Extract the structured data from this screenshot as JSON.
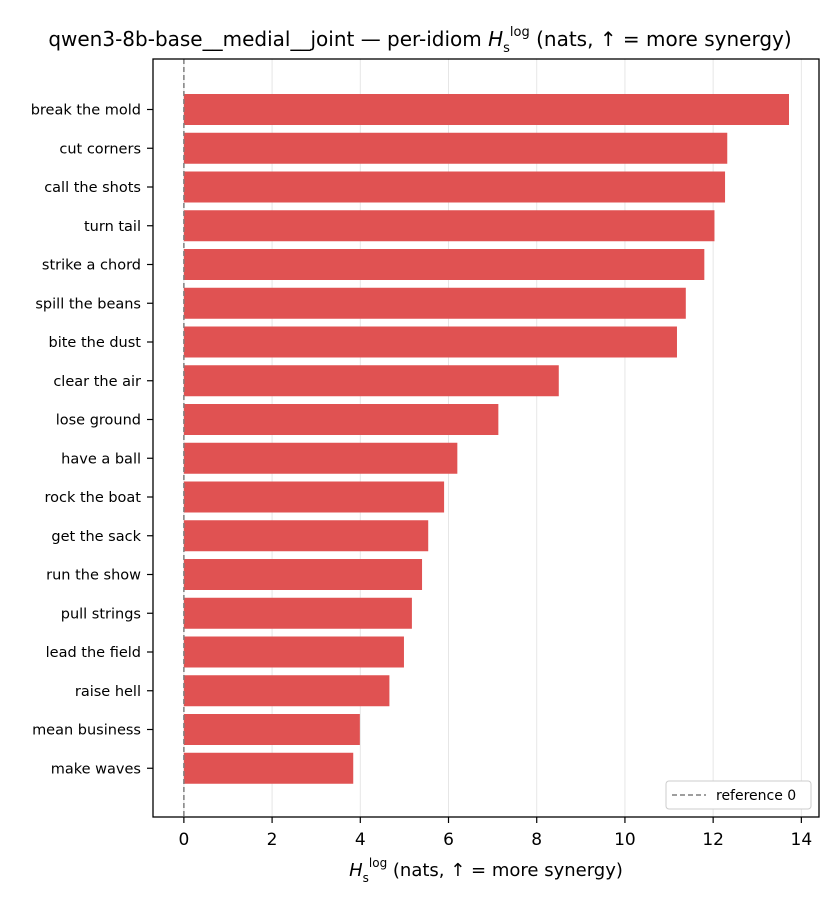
{
  "chart_data": {
    "type": "bar",
    "orientation": "horizontal",
    "title_prefix": "qwen3-8b-base__medial__joint — per-idiom ",
    "title_suffix": " (nats, ↑ = more synergy)",
    "xlabel_suffix": " (nats, ↑ = more synergy)",
    "symbol": {
      "base": "H",
      "sub": "s",
      "sup": "log"
    },
    "categories": [
      "break the mold",
      "cut corners",
      "call the shots",
      "turn tail",
      "strike a chord",
      "spill the beans",
      "bite the dust",
      "clear the air",
      "lose ground",
      "have a ball",
      "rock the boat",
      "get the sack",
      "run the show",
      "pull strings",
      "lead the field",
      "raise hell",
      "mean business",
      "make waves"
    ],
    "values": [
      13.72,
      12.32,
      12.27,
      12.03,
      11.8,
      11.38,
      11.18,
      8.5,
      7.13,
      6.2,
      5.9,
      5.54,
      5.4,
      5.17,
      4.99,
      4.66,
      3.99,
      3.84
    ],
    "xlim": [
      -0.7,
      14.4
    ],
    "xticks": [
      0,
      2,
      4,
      6,
      8,
      10,
      12,
      14
    ],
    "grid": "vertical",
    "bar_color": "#e05252",
    "reference_line": {
      "value": 0,
      "label": "reference 0",
      "color": "#7f7f7f"
    },
    "legend_position": "lower-right"
  }
}
